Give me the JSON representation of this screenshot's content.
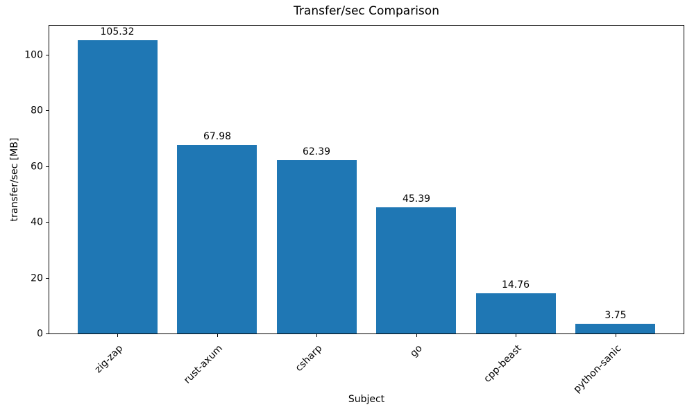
{
  "chart_data": {
    "type": "bar",
    "title": "Transfer/sec Comparison",
    "xlabel": "Subject",
    "ylabel": "transfer/sec [MB]",
    "categories": [
      "zig-zap",
      "rust-axum",
      "csharp",
      "go",
      "cpp-beast",
      "python-sanic"
    ],
    "values": [
      105.32,
      67.98,
      62.39,
      45.39,
      14.76,
      3.75
    ],
    "value_labels": [
      "105.32",
      "67.98",
      "62.39",
      "45.39",
      "14.76",
      "3.75"
    ],
    "series": [
      {
        "name": "transfer/sec",
        "values": [
          105.32,
          67.98,
          62.39,
          45.39,
          14.76,
          3.75
        ]
      }
    ],
    "bar_color": "#1f77b4",
    "axis_color": "#000000",
    "text_color": "#000000",
    "background_color": "#ffffff",
    "ylim": [
      0,
      110.9
    ],
    "xlim": [
      -0.69,
      5.69
    ],
    "yticks": [
      0,
      20,
      40,
      60,
      80,
      100
    ],
    "bar_width_units": 0.8,
    "xtick_rotation_deg": 45,
    "grid": false,
    "legend": "none"
  }
}
